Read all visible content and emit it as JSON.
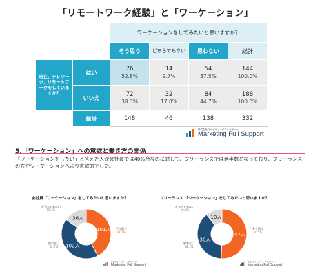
{
  "title": "「リモートワーク経験」と「ワーケーション」",
  "table": {
    "header": "ワーケーションをしてみたいと思いますか？",
    "columns": [
      "そう思う",
      "どちらでもない",
      "思わない",
      "総計"
    ],
    "row_group_label": "現在、テレワーク、リモートワークをしていますか？",
    "rows": [
      {
        "label": "はい",
        "counts": [
          "76",
          "14",
          "54",
          "144"
        ],
        "pcts": [
          "52.8%",
          "9.7%",
          "37.5%",
          "100.0%"
        ]
      },
      {
        "label": "いいえ",
        "counts": [
          "72",
          "32",
          "84",
          "188"
        ],
        "pcts": [
          "38.3%",
          "17.0%",
          "44.7%",
          "100.0%"
        ]
      }
    ],
    "total": {
      "label": "総計",
      "counts": [
        "148",
        "46",
        "138",
        "332"
      ]
    }
  },
  "logo": {
    "small": "株式会社マーケティングフルサポート",
    "big": "Marketing Full Support"
  },
  "section": {
    "title": "5.「ワーケーション」への意欲と働き方の関係",
    "paragraph": "「ワーケーションをしたい」と答えた人が会社員では40%台なのに対して、フリーランスでは過半数となっており、フリーランスの方がワーケーションへより意欲的でした。"
  },
  "colors": {
    "yes": "#f26522",
    "neutral": "#d9d9d9",
    "no": "#1f4e79",
    "accent": "#22a6c9",
    "section_bar": "#e94d8a"
  },
  "chart_data": [
    {
      "type": "pie",
      "title": "会社員「ワーケーション」をしてみたいと思いますか？",
      "categories": [
        "そう思う",
        "思わない",
        "どちらでもない"
      ],
      "counts": [
        "101人",
        "102人",
        "36人"
      ],
      "percents": [
        "42.3%",
        "42.7%",
        "15.1%"
      ],
      "values": [
        101,
        102,
        36
      ]
    },
    {
      "type": "pie",
      "title": "フリーランス 「ワーケーション」をしてみたいと思いますか？",
      "categories": [
        "そう思う",
        "思わない",
        "どちらでもない"
      ],
      "counts": [
        "47人",
        "36人",
        "10人"
      ],
      "percents": [
        "50.5%",
        "38.7%",
        "10.8%"
      ],
      "values": [
        47,
        36,
        10
      ]
    }
  ]
}
